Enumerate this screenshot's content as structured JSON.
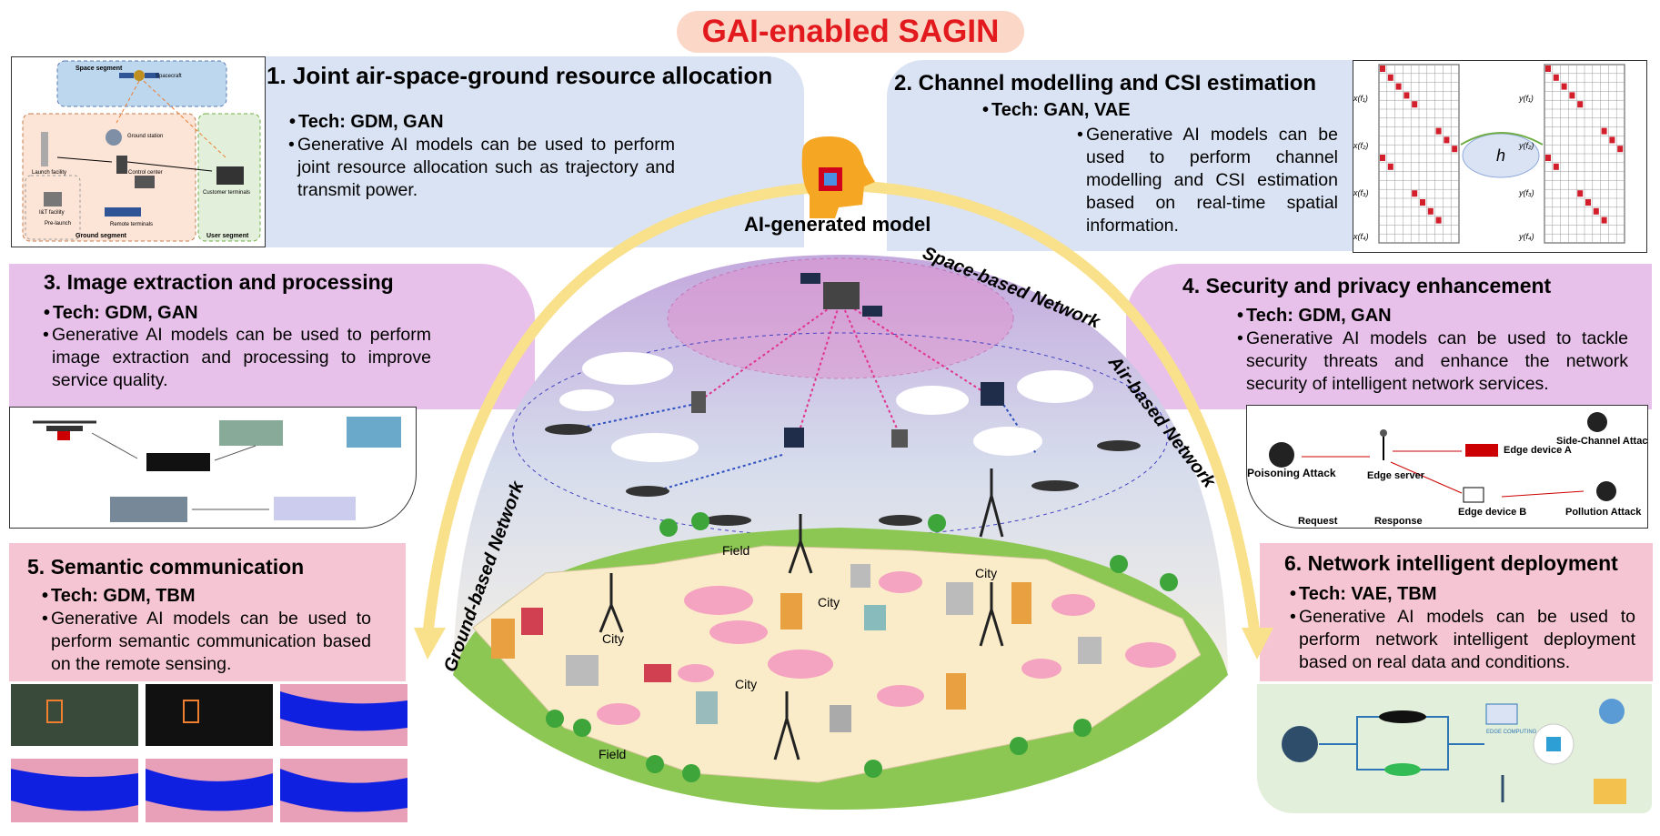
{
  "title": "GAI-enabled SAGIN",
  "center": {
    "model_label": "AI-generated model",
    "space_label": "Space-based Network",
    "air_label": "Air-based Network",
    "ground_label": "Ground-based Network",
    "places": {
      "field_top": "Field",
      "city_top": "City",
      "city_left": "City",
      "city_center": "City",
      "city_mid": "City",
      "field_bottom": "Field"
    }
  },
  "panels": [
    {
      "title": "1. Joint air-space-ground resource allocation",
      "tech": "Tech: GDM, GAN",
      "desc": "Generative AI models can be used to perform joint resource allocation such as trajectory and transmit power."
    },
    {
      "title": "2. Channel modelling and CSI estimation",
      "tech": "Tech: GAN, VAE",
      "desc": "Generative AI models can be used to perform channel modelling and CSI estimation based on real-time spatial information."
    },
    {
      "title": "3. Image extraction and processing",
      "tech": "Tech: GDM, GAN",
      "desc": "Generative AI models can be used to perform image extraction and processing to improve service quality."
    },
    {
      "title": "4. Security and privacy enhancement",
      "tech": "Tech: GDM, GAN",
      "desc": "Generative AI models can be used to tackle security threats and enhance the network security of intelligent network services."
    },
    {
      "title": "5. Semantic communication",
      "tech": "Tech: GDM, TBM",
      "desc": "Generative AI models can be used to perform semantic communication based on the remote sensing."
    },
    {
      "title": "6. Network intelligent deployment",
      "tech": "Tech: VAE, TBM",
      "desc": "Generative AI models can be used to perform network intelligent deployment based on real data and conditions."
    }
  ],
  "thumb1": {
    "space_segment": "Space segment",
    "spacecraft": "Spacecraft",
    "ground_station": "Ground station",
    "launch_facility": "Launch facility",
    "control_center": "Control center",
    "customer_terminals": "Customer terminals",
    "iat_facility": "I&T facility",
    "pre_launch": "Pre-launch",
    "remote_terminals": "Remote terminals",
    "ground_segment": "Ground segment",
    "user_segment": "User segment"
  },
  "thumb2": {
    "x1": "x(f₁)",
    "x2": "x(f₂)",
    "x3": "x(f₃)",
    "x4": "x(f₄)",
    "y1": "y(f₁)",
    "y2": "y(f₂)",
    "y3": "y(f₃)",
    "y4": "y(f₄)",
    "h": "h"
  },
  "thumb4": {
    "poisoning": "Poisoning Attack",
    "edge_server": "Edge server",
    "edge_a": "Edge device A",
    "edge_b": "Edge device B",
    "side_channel": "Side-Channel Attack",
    "pollution": "Pollution Attack",
    "request": "Request",
    "response": "Response"
  },
  "thumb6": {
    "edge_computing": "EDGE COMPUTING"
  },
  "colors": {
    "title_red": "#e2191d",
    "title_pill": "#fbd7c8",
    "blue_panel": "#dae3f3",
    "purple_panel": "#e8c1ea",
    "pink_panel": "#f6c5d4",
    "green_panel": "#e2efda",
    "arrow_yellow": "#f9e08a"
  }
}
